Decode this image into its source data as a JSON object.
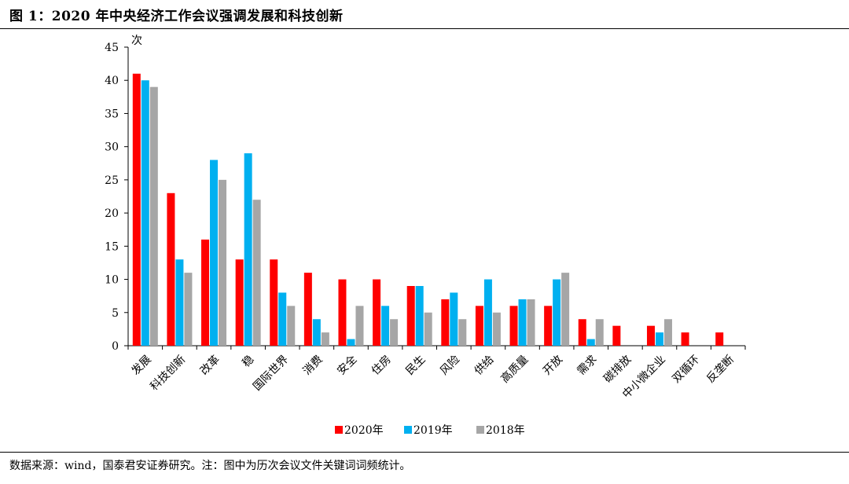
{
  "header": {
    "title": "图 1：2020 年中央经济工作会议强调发展和科技创新"
  },
  "footer": {
    "source": "数据来源：wind，国泰君安证券研究。注：图中为历次会议文件关键词词频统计。"
  },
  "chart_data": {
    "type": "bar",
    "ylabel": "次",
    "ylim": [
      0,
      45
    ],
    "yticks": [
      "0",
      "5",
      "10",
      "15",
      "20",
      "25",
      "30",
      "35",
      "40",
      "45"
    ],
    "categories": [
      "发展",
      "科技创新",
      "改革",
      "稳",
      "国际世界",
      "消费",
      "安全",
      "住房",
      "民生",
      "风险",
      "供给",
      "高质量",
      "开放",
      "需求",
      "碳排放",
      "中小微企业",
      "双循环",
      "反垄断"
    ],
    "series": [
      {
        "name": "2020年",
        "color": "#ff0000",
        "values": [
          41,
          23,
          16,
          13,
          13,
          11,
          10,
          10,
          9,
          7,
          6,
          6,
          6,
          4,
          3,
          3,
          2,
          2
        ]
      },
      {
        "name": "2019年",
        "color": "#00b0f0",
        "values": [
          40,
          13,
          28,
          29,
          8,
          4,
          1,
          6,
          9,
          8,
          10,
          7,
          10,
          1,
          0,
          2,
          0,
          0
        ]
      },
      {
        "name": "2018年",
        "color": "#a6a6a6",
        "values": [
          39,
          11,
          25,
          22,
          6,
          2,
          6,
          4,
          5,
          4,
          5,
          7,
          11,
          4,
          0,
          4,
          0,
          0
        ]
      }
    ],
    "legend_position": "bottom",
    "grid": false
  }
}
